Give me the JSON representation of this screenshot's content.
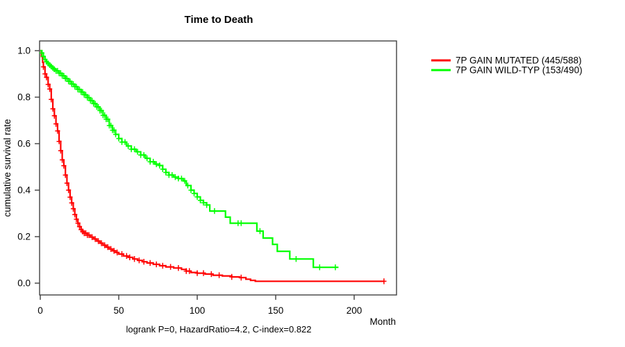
{
  "chart": {
    "title": "Time to Death",
    "x_label": "Month",
    "y_label": "cumulative survival rate",
    "annotation": "logrank P=0, HazardRatio=4.2, C-index=0.822"
  },
  "chart_data": {
    "type": "line",
    "subtype": "kaplan-meier-step-survival",
    "title": "Time to Death",
    "xlabel": "Month",
    "ylabel": "cumulative survival rate",
    "xlim": [
      0,
      227
    ],
    "ylim": [
      0.0,
      1.0
    ],
    "x_ticks": [
      0,
      50,
      100,
      150,
      200
    ],
    "y_ticks": [
      0.0,
      0.2,
      0.4,
      0.6,
      0.8,
      1.0
    ],
    "y_tick_labels": [
      "0.0",
      "0.2",
      "0.4",
      "0.6",
      "0.8",
      "1.0"
    ],
    "grid": false,
    "legend_position": "right-outside",
    "stats_annotation": "logrank P=0, HazardRatio=4.2, C-index=0.822",
    "frame_color": "#404040",
    "series": [
      {
        "name": "7P GAIN MUTATED (445/588)",
        "color": "#ff0000",
        "points": [
          [
            0,
            1.0
          ],
          [
            0.7,
            0.975
          ],
          [
            1.5,
            0.95
          ],
          [
            2,
            0.93
          ],
          [
            3,
            0.9
          ],
          [
            4,
            0.885
          ],
          [
            5,
            0.855
          ],
          [
            6,
            0.835
          ],
          [
            7,
            0.79
          ],
          [
            8,
            0.75
          ],
          [
            9,
            0.72
          ],
          [
            10,
            0.685
          ],
          [
            11,
            0.655
          ],
          [
            12,
            0.61
          ],
          [
            13,
            0.57
          ],
          [
            14,
            0.53
          ],
          [
            15,
            0.505
          ],
          [
            16,
            0.465
          ],
          [
            17,
            0.43
          ],
          [
            18,
            0.4
          ],
          [
            19,
            0.37
          ],
          [
            20,
            0.345
          ],
          [
            21,
            0.32
          ],
          [
            22,
            0.295
          ],
          [
            23,
            0.275
          ],
          [
            24,
            0.258
          ],
          [
            25,
            0.243
          ],
          [
            26,
            0.23
          ],
          [
            27,
            0.222
          ],
          [
            28,
            0.215
          ],
          [
            30,
            0.207
          ],
          [
            32,
            0.198
          ],
          [
            34,
            0.19
          ],
          [
            36,
            0.181
          ],
          [
            38,
            0.172
          ],
          [
            40,
            0.163
          ],
          [
            42,
            0.155
          ],
          [
            44,
            0.147
          ],
          [
            46,
            0.139
          ],
          [
            48,
            0.132
          ],
          [
            50,
            0.125
          ],
          [
            53,
            0.117
          ],
          [
            56,
            0.111
          ],
          [
            59,
            0.104
          ],
          [
            62,
            0.098
          ],
          [
            65,
            0.092
          ],
          [
            68,
            0.087
          ],
          [
            72,
            0.081
          ],
          [
            76,
            0.075
          ],
          [
            80,
            0.07
          ],
          [
            85,
            0.065
          ],
          [
            90,
            0.059
          ],
          [
            93,
            0.052
          ],
          [
            96,
            0.046
          ],
          [
            100,
            0.043
          ],
          [
            105,
            0.039
          ],
          [
            110,
            0.034
          ],
          [
            116,
            0.031
          ],
          [
            122,
            0.027
          ],
          [
            127,
            0.024
          ],
          [
            131,
            0.017
          ],
          [
            134,
            0.012
          ],
          [
            137,
            0.008
          ],
          [
            219,
            0.008
          ]
        ],
        "censor_months": [
          2,
          3,
          4,
          5,
          6,
          7,
          8,
          9,
          10,
          11,
          12,
          13,
          14,
          15,
          16,
          17,
          18,
          19,
          20,
          21,
          22,
          23,
          24,
          25,
          26,
          27,
          28,
          29,
          30,
          31,
          33,
          35,
          37,
          39,
          41,
          43,
          45,
          47,
          49,
          52,
          55,
          57,
          60,
          63,
          66,
          70,
          74,
          78,
          83,
          88,
          93,
          95,
          100,
          104,
          109,
          114,
          122,
          128,
          219
        ]
      },
      {
        "name": "7P GAIN WILD-TYP (153/490)",
        "color": "#00ff00",
        "points": [
          [
            0,
            1.0
          ],
          [
            1,
            0.99
          ],
          [
            2,
            0.975
          ],
          [
            3,
            0.962
          ],
          [
            4,
            0.952
          ],
          [
            5,
            0.945
          ],
          [
            6,
            0.938
          ],
          [
            7,
            0.932
          ],
          [
            8,
            0.925
          ],
          [
            9,
            0.92
          ],
          [
            10,
            0.913
          ],
          [
            12,
            0.903
          ],
          [
            14,
            0.892
          ],
          [
            16,
            0.88
          ],
          [
            18,
            0.868
          ],
          [
            20,
            0.856
          ],
          [
            22,
            0.845
          ],
          [
            24,
            0.833
          ],
          [
            26,
            0.822
          ],
          [
            28,
            0.81
          ],
          [
            30,
            0.798
          ],
          [
            32,
            0.785
          ],
          [
            34,
            0.772
          ],
          [
            36,
            0.758
          ],
          [
            38,
            0.742
          ],
          [
            40,
            0.722
          ],
          [
            42,
            0.705
          ],
          [
            44,
            0.678
          ],
          [
            46,
            0.658
          ],
          [
            48,
            0.64
          ],
          [
            50,
            0.622
          ],
          [
            52,
            0.607
          ],
          [
            55,
            0.59
          ],
          [
            58,
            0.576
          ],
          [
            61,
            0.565
          ],
          [
            64,
            0.551
          ],
          [
            67,
            0.537
          ],
          [
            70,
            0.522
          ],
          [
            73,
            0.512
          ],
          [
            76,
            0.506
          ],
          [
            78,
            0.49
          ],
          [
            80,
            0.476
          ],
          [
            82,
            0.465
          ],
          [
            85,
            0.456
          ],
          [
            88,
            0.45
          ],
          [
            91,
            0.44
          ],
          [
            93,
            0.42
          ],
          [
            96,
            0.4
          ],
          [
            98,
            0.386
          ],
          [
            100,
            0.371
          ],
          [
            102,
            0.356
          ],
          [
            104,
            0.346
          ],
          [
            106,
            0.336
          ],
          [
            108,
            0.31
          ],
          [
            118,
            0.284
          ],
          [
            121,
            0.258
          ],
          [
            138,
            0.224
          ],
          [
            142,
            0.194
          ],
          [
            148,
            0.167
          ],
          [
            151,
            0.137
          ],
          [
            159,
            0.104
          ],
          [
            174,
            0.068
          ],
          [
            190,
            0.068
          ]
        ],
        "censor_months": [
          1,
          2,
          3,
          4,
          5,
          6,
          7,
          8,
          9,
          10,
          11,
          12,
          13,
          14,
          15,
          16,
          17,
          18,
          19,
          20,
          21,
          22,
          23,
          24,
          25,
          26,
          27,
          28,
          29,
          30,
          31,
          32,
          33,
          34,
          35,
          36,
          37,
          38,
          39,
          40,
          41,
          42,
          43,
          44,
          45,
          46,
          47,
          48,
          50,
          52,
          54,
          56,
          58,
          60,
          62,
          64,
          66,
          68,
          70,
          72,
          74,
          76,
          78,
          80,
          82,
          84,
          86,
          88,
          90,
          92,
          94,
          96,
          98,
          100,
          102,
          104,
          106,
          111,
          126,
          128,
          140,
          163,
          178,
          188
        ]
      }
    ]
  }
}
